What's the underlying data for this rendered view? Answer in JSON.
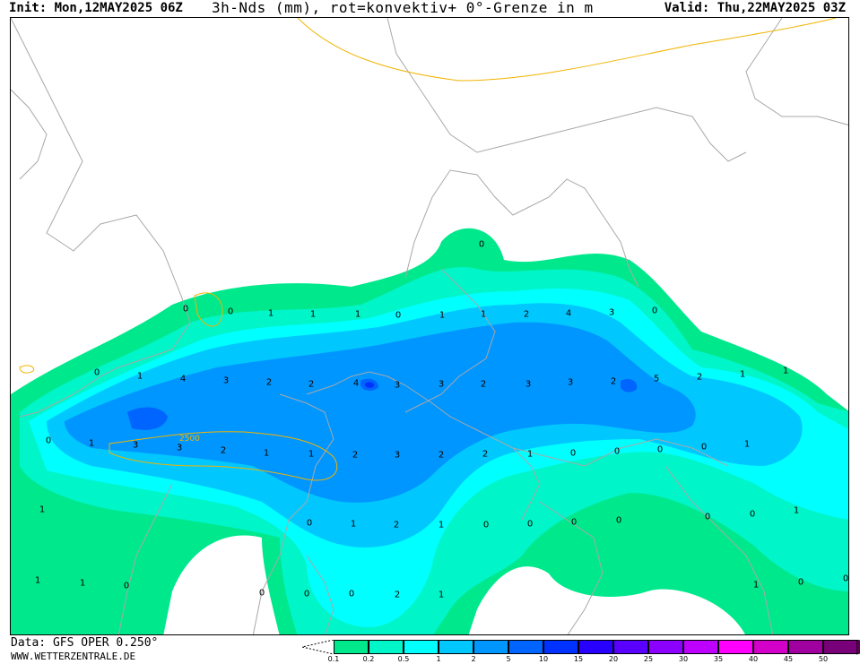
{
  "header": {
    "init": "Init: Mon,12MAY2025 06Z",
    "title": "3h-Nds (mm), rot=konvektiv+ 0°-Grenze in m",
    "valid": "Valid: Thu,22MAY2025 03Z"
  },
  "map": {
    "contour_label": "2500",
    "colors": [
      "#00e88c",
      "#00f5c8",
      "#00ffff",
      "#00c8ff",
      "#0096ff",
      "#0064ff",
      "#0032ff",
      "#2800ff",
      "#5a00ff",
      "#8c00ff",
      "#be00ff",
      "#ff00ff",
      "#d200c8",
      "#a000a0",
      "#780078"
    ],
    "values": [
      {
        "v": "0"
      },
      {
        "v": "0"
      },
      {
        "v": "1"
      },
      {
        "v": "1"
      },
      {
        "v": "1"
      },
      {
        "v": "0"
      },
      {
        "v": "1"
      },
      {
        "v": "1"
      },
      {
        "v": "2"
      },
      {
        "v": "4"
      },
      {
        "v": "3"
      },
      {
        "v": "0"
      },
      {
        "v": "0"
      },
      {
        "v": "0"
      },
      {
        "v": "1"
      },
      {
        "v": "4"
      },
      {
        "v": "3"
      },
      {
        "v": "2"
      },
      {
        "v": "2"
      },
      {
        "v": "4"
      },
      {
        "v": "3"
      },
      {
        "v": "3"
      },
      {
        "v": "2"
      },
      {
        "v": "3"
      },
      {
        "v": "3"
      },
      {
        "v": "2"
      },
      {
        "v": "5"
      },
      {
        "v": "2"
      },
      {
        "v": "1"
      },
      {
        "v": "1"
      },
      {
        "v": "0"
      },
      {
        "v": "1"
      },
      {
        "v": "3"
      },
      {
        "v": "3"
      },
      {
        "v": "2"
      },
      {
        "v": "1"
      },
      {
        "v": "1"
      },
      {
        "v": "2"
      },
      {
        "v": "3"
      },
      {
        "v": "2"
      },
      {
        "v": "2"
      },
      {
        "v": "1"
      },
      {
        "v": "0"
      },
      {
        "v": "0"
      },
      {
        "v": "0"
      },
      {
        "v": "0"
      },
      {
        "v": "1"
      },
      {
        "v": "1"
      },
      {
        "v": "0"
      },
      {
        "v": "1"
      },
      {
        "v": "2"
      },
      {
        "v": "1"
      },
      {
        "v": "0"
      },
      {
        "v": "0"
      },
      {
        "v": "0"
      },
      {
        "v": "0"
      },
      {
        "v": "0"
      },
      {
        "v": "0"
      },
      {
        "v": "1"
      },
      {
        "v": "1"
      },
      {
        "v": "1"
      },
      {
        "v": "0"
      },
      {
        "v": "0"
      },
      {
        "v": "0"
      },
      {
        "v": "0"
      },
      {
        "v": "2"
      },
      {
        "v": "1"
      },
      {
        "v": "1"
      },
      {
        "v": "0"
      },
      {
        "v": "0"
      },
      {
        "v": "0"
      },
      {
        "v": "1"
      }
    ]
  },
  "footer": {
    "data_label": "Data: GFS OPER 0.250°",
    "site": "WWW.WETTERZENTRALE.DE"
  },
  "legend": {
    "labels": [
      "0.1",
      "0.2",
      "0.5",
      "1",
      "2",
      "5",
      "10",
      "15",
      "20",
      "25",
      "30",
      "35",
      "40",
      "45",
      "50"
    ]
  }
}
